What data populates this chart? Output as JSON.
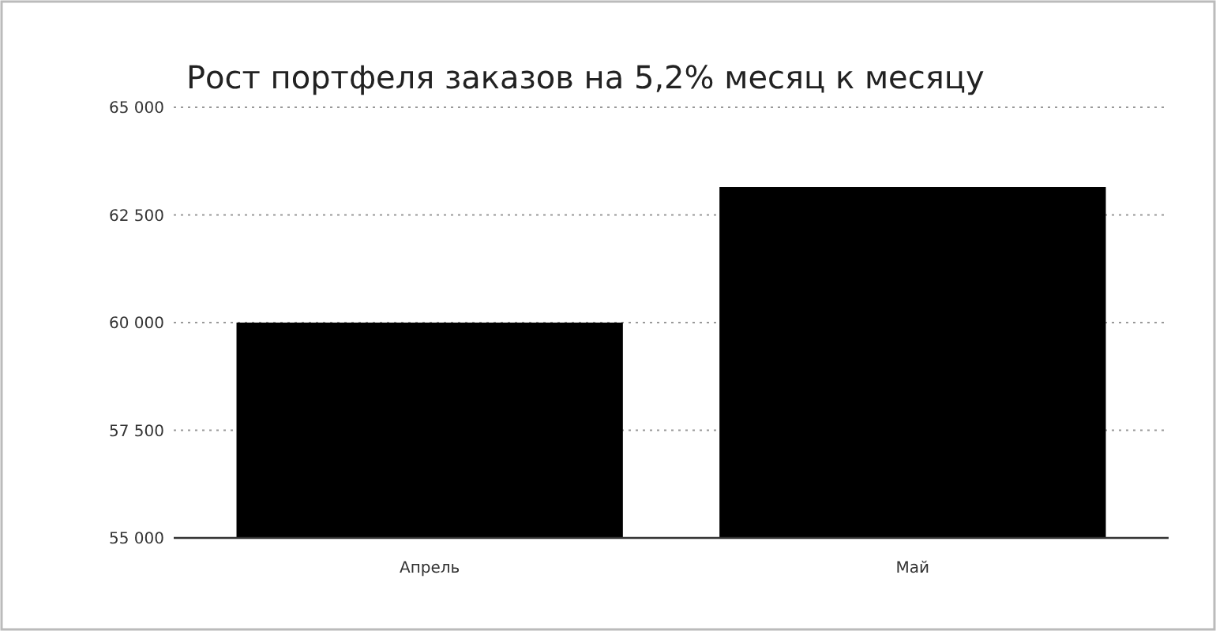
{
  "chart_data": {
    "type": "bar",
    "title": "Рост портфеля заказов на 5,2% месяц к месяцу",
    "categories": [
      "Апрель",
      "Май"
    ],
    "values": [
      60000,
      63150
    ],
    "color": "#000000",
    "ylim": [
      55000,
      65000
    ],
    "yticks": [
      {
        "value": 55000,
        "label": "55 000"
      },
      {
        "value": 57500,
        "label": "57 500"
      },
      {
        "value": 60000,
        "label": "60 000"
      },
      {
        "value": 62500,
        "label": "62 500"
      },
      {
        "value": 65000,
        "label": "65 000"
      }
    ],
    "grid": true
  }
}
